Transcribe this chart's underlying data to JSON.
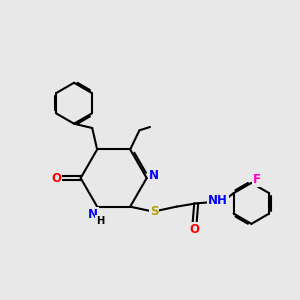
{
  "bg_color": "#e8e8e8",
  "bond_color": "#000000",
  "bond_width": 1.5,
  "atom_colors": {
    "N": "#0000ff",
    "O": "#ff0000",
    "S": "#b8a000",
    "F": "#ff00cc",
    "H": "#000000"
  },
  "font_size": 8.5
}
